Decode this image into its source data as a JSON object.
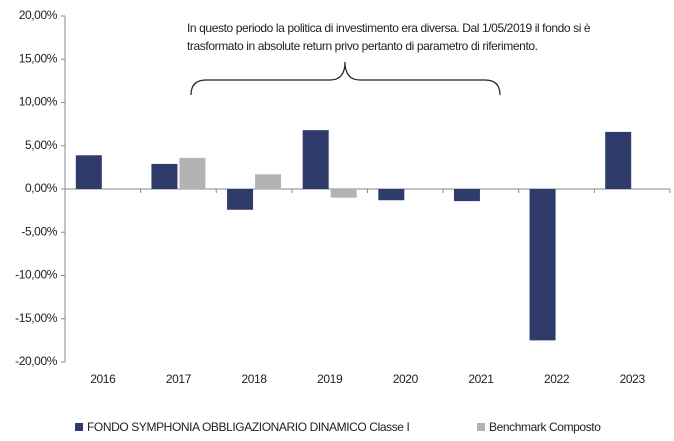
{
  "chart_data": {
    "type": "bar",
    "annotation": [
      "In questo periodo la politica di investimento era diversa. Dal 1/05/2019 il fondo si è",
      "trasformato in absolute return privo pertanto di parametro di riferimento."
    ],
    "categories": [
      "2016",
      "2017",
      "2018",
      "2019",
      "2020",
      "2021",
      "2022",
      "2023"
    ],
    "series": [
      {
        "name": "FONDO SYMPHONIA OBBLIGAZIONARIO DINAMICO Classe I",
        "color": "#2e3b6b",
        "values": [
          3.9,
          2.9,
          -2.4,
          6.8,
          -1.3,
          -1.4,
          -17.5,
          6.6
        ]
      },
      {
        "name": "Benchmark Composto",
        "color": "#b3b3b3",
        "values": [
          null,
          3.6,
          1.7,
          -1.0,
          null,
          null,
          null,
          null
        ]
      }
    ],
    "ylim": [
      -20,
      20
    ],
    "yticks": [
      {
        "value": -20,
        "label": "-20,00%"
      },
      {
        "value": -15,
        "label": "-15,00%"
      },
      {
        "value": -10,
        "label": "-10,00%"
      },
      {
        "value": -5,
        "label": "-5,00%"
      },
      {
        "value": 0,
        "label": "0,00%"
      },
      {
        "value": 5,
        "label": "5,00%"
      },
      {
        "value": 10,
        "label": "10,00%"
      },
      {
        "value": 15,
        "label": "15,00%"
      },
      {
        "value": 20,
        "label": "20,00%"
      }
    ],
    "grid": false
  }
}
